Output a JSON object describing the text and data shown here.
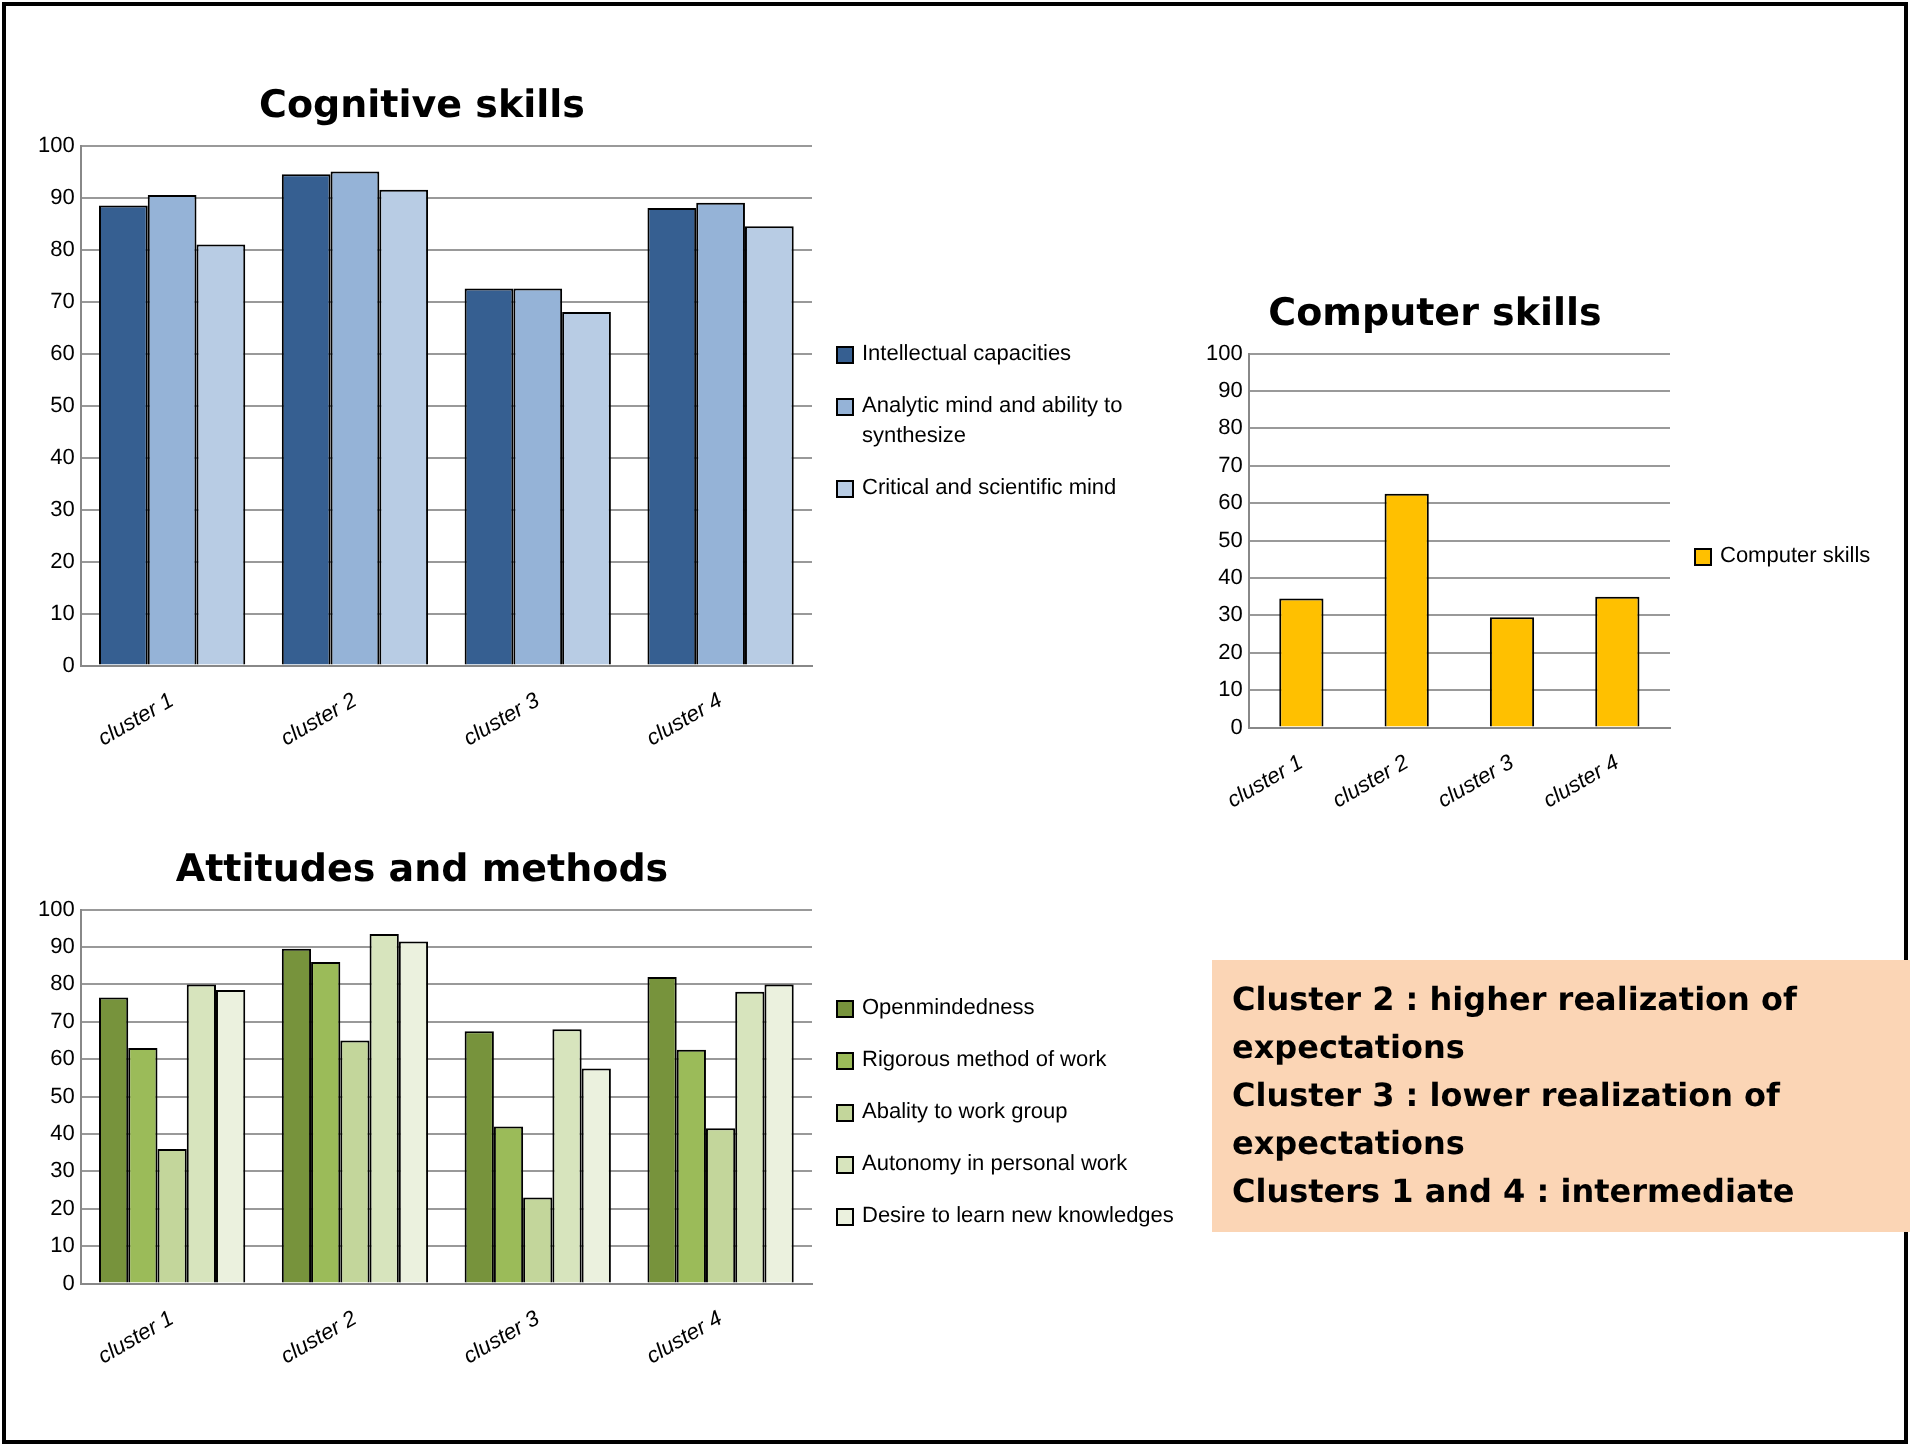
{
  "chart_data": [
    {
      "type": "bar",
      "title": "Cognitive skills",
      "categories": [
        "cluster 1",
        "cluster 2",
        "cluster 3",
        "cluster 4"
      ],
      "series": [
        {
          "name": "Intellectual capacities",
          "color": "#365f91",
          "values": [
            88.5,
            94.5,
            72.5,
            88
          ]
        },
        {
          "name": "Analytic mind and ability to synthesize",
          "color": "#95b3d7",
          "values": [
            90.5,
            95,
            72.5,
            89
          ]
        },
        {
          "name": "Critical and scientific mind",
          "color": "#b8cce4",
          "values": [
            81,
            91.5,
            68,
            84.5
          ]
        }
      ],
      "ylim": [
        0,
        100
      ],
      "yticks": [
        0,
        10,
        20,
        30,
        40,
        50,
        60,
        70,
        80,
        90,
        100
      ],
      "grid": "y",
      "legend": "right"
    },
    {
      "type": "bar",
      "title": "Computer skills",
      "categories": [
        "cluster 1",
        "cluster 2",
        "cluster 3",
        "cluster 4"
      ],
      "series": [
        {
          "name": "Computer skills",
          "color": "#ffc000",
          "values": [
            34.5,
            62.5,
            29.5,
            35
          ]
        }
      ],
      "ylim": [
        0,
        100
      ],
      "yticks": [
        0,
        10,
        20,
        30,
        40,
        50,
        60,
        70,
        80,
        90,
        100
      ],
      "grid": "y",
      "legend": "right"
    },
    {
      "type": "bar",
      "title": "Attitudes and methods",
      "categories": [
        "cluster 1",
        "cluster 2",
        "cluster 3",
        "cluster 4"
      ],
      "series": [
        {
          "name": "Openmindedness",
          "color": "#77933c",
          "values": [
            76.5,
            89.5,
            67.5,
            82
          ]
        },
        {
          "name": "Rigorous method of work",
          "color": "#9bbb59",
          "values": [
            63,
            86,
            42,
            62.5
          ]
        },
        {
          "name": "Abality to work group",
          "color": "#c3d69b",
          "values": [
            36,
            65,
            23,
            41.5
          ]
        },
        {
          "name": "Autonomy in personal work",
          "color": "#d7e4bd",
          "values": [
            80,
            93.5,
            68,
            78
          ]
        },
        {
          "name": "Desire to learn new knowledges",
          "color": "#ebf1de",
          "values": [
            78.5,
            91.5,
            57.5,
            80
          ]
        }
      ],
      "ylim": [
        0,
        100
      ],
      "yticks": [
        0,
        10,
        20,
        30,
        40,
        50,
        60,
        70,
        80,
        90,
        100
      ],
      "grid": "y",
      "legend": "right"
    },
    {
      "type": "other",
      "annotations": [
        "Cluster 2 : higher realization of expectations",
        "Cluster 3 : lower realization of expectations",
        "Clusters 1 and 4 : intermediate"
      ]
    }
  ]
}
